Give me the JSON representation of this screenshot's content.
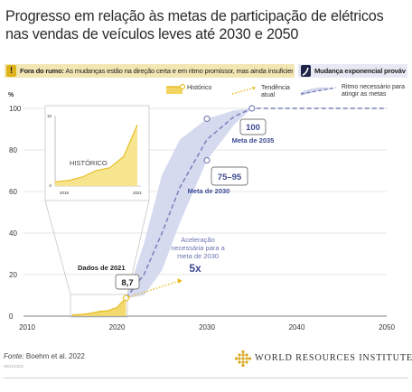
{
  "title": "Progresso em relação às metas de participação de elétricos nas vendas de veículos leves até 2030 e 2050",
  "banner": {
    "status_bold": "Fora do rumo:",
    "status_text": "As mudanças estão na direção certa e em ritmo promissor, mas ainda insuficiente",
    "change_label": "Mudança exponencial provável",
    "warn_icon": "!"
  },
  "legend": {
    "historic": "Histórico",
    "trend": "Tendência atual",
    "required": "Ritmo necessário para atingir as metas"
  },
  "annotations": {
    "data_2021_label": "Dados de 2021",
    "data_2021_value": "8,7",
    "target_2030_value": "75–95",
    "target_2030_label": "Meta de 2030",
    "target_2035_value": "100",
    "target_2035_label": "Meta de 2035",
    "acceleration_line1": "Aceleração",
    "acceleration_line2": "necessária para a",
    "acceleration_line3": "meta de 2030",
    "acceleration_factor": "5x"
  },
  "inset": {
    "label": "HISTÓRICO",
    "y_ticks": [
      "0",
      "10"
    ],
    "x_ticks": [
      "2015",
      "2021"
    ]
  },
  "footer": {
    "source_label": "Fonte:",
    "source_text": "Boehm et al. 2022",
    "date": "08/11/2022",
    "org": "WORLD RESOURCES INSTITUTE"
  },
  "colors": {
    "historic": "#e8c02a",
    "trend": "#e8b81a",
    "required": "#7a80b8",
    "band": "#d4d8ee",
    "target": "#3d4a92"
  },
  "chart_data": {
    "type": "line",
    "ylabel": "%",
    "xlim": [
      2010,
      2050
    ],
    "ylim": [
      0,
      100
    ],
    "x_ticks": [
      2010,
      2020,
      2030,
      2040,
      2050
    ],
    "y_ticks": [
      0,
      20,
      40,
      60,
      80,
      100
    ],
    "grid": "horizontal",
    "legend_position": "top-right",
    "series": [
      {
        "name": "Histórico",
        "style": "area",
        "points": [
          [
            2015,
            0.6
          ],
          [
            2016,
            0.8
          ],
          [
            2017,
            1.3
          ],
          [
            2018,
            2.2
          ],
          [
            2019,
            2.6
          ],
          [
            2020,
            4.2
          ],
          [
            2021,
            8.7
          ]
        ]
      },
      {
        "name": "Tendência atual",
        "style": "dotted",
        "points": [
          [
            2021,
            8.7
          ],
          [
            2027,
            17
          ]
        ]
      },
      {
        "name": "Ritmo necessário para atingir as metas",
        "style": "dashed",
        "points": [
          [
            2021,
            8.7
          ],
          [
            2023,
            20
          ],
          [
            2025,
            40
          ],
          [
            2027,
            62
          ],
          [
            2030,
            85
          ],
          [
            2033,
            96
          ],
          [
            2035,
            100
          ],
          [
            2050,
            100
          ]
        ]
      }
    ],
    "band": {
      "upper": [
        [
          2021,
          8.7
        ],
        [
          2023,
          35
        ],
        [
          2025,
          68
        ],
        [
          2027,
          85
        ],
        [
          2030,
          95
        ],
        [
          2033,
          99
        ],
        [
          2035,
          100
        ]
      ],
      "lower": [
        [
          2021,
          8.7
        ],
        [
          2023,
          10
        ],
        [
          2025,
          22
        ],
        [
          2027,
          45
        ],
        [
          2030,
          75
        ],
        [
          2033,
          92
        ],
        [
          2035,
          100
        ]
      ]
    },
    "markers": [
      {
        "x": 2021,
        "y": 8.7
      },
      {
        "x": 2030,
        "y": 95
      },
      {
        "x": 2030,
        "y": 75
      },
      {
        "x": 2035,
        "y": 100
      }
    ]
  }
}
